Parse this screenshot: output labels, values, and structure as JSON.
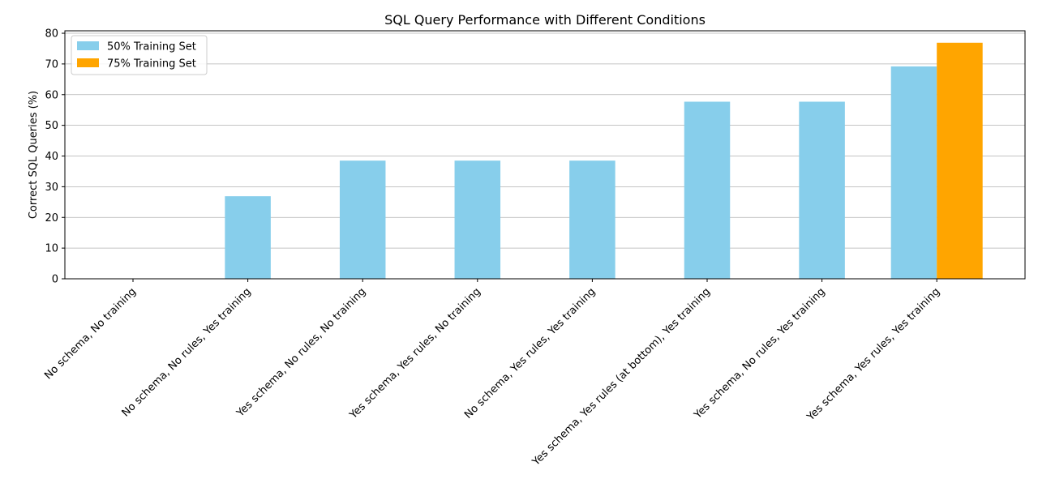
{
  "chart_data": {
    "type": "bar",
    "title": "SQL Query Performance with Different Conditions",
    "xlabel": "",
    "ylabel": "Correct SQL Queries (%)",
    "ylim": [
      0,
      80.8
    ],
    "yticks": [
      0,
      10,
      20,
      30,
      40,
      50,
      60,
      70,
      80
    ],
    "grid": "horizontal",
    "legend_position": "top-left",
    "categories": [
      "No schema, No training",
      "No schema, No rules, Yes training",
      "Yes schema, No rules, No training",
      "Yes schema, Yes rules, No training",
      "No schema, Yes rules, Yes training",
      "Yes schema, Yes rules (at bottom), Yes training",
      "Yes schema, No rules, Yes training",
      "Yes schema, Yes rules, Yes training"
    ],
    "series": [
      {
        "name": "50% Training Set",
        "color": "#87CEEB",
        "values": [
          0,
          26.9,
          38.5,
          38.5,
          38.5,
          57.7,
          57.7,
          69.2
        ]
      },
      {
        "name": "75% Training Set",
        "color": "#FFA500",
        "values": [
          null,
          null,
          null,
          null,
          null,
          null,
          null,
          76.9
        ]
      }
    ]
  }
}
